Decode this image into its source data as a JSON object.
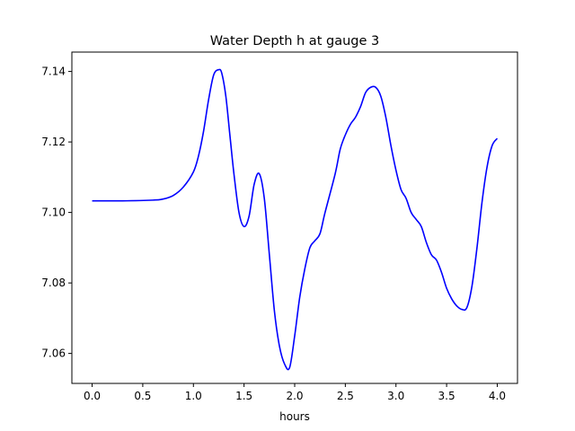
{
  "chart_data": {
    "type": "line",
    "title": "Water Depth h at gauge 3",
    "xlabel": "hours",
    "ylabel": "",
    "xlim": [
      -0.2,
      4.2
    ],
    "ylim": [
      7.0515,
      7.1455
    ],
    "xticks": [
      0.0,
      0.5,
      1.0,
      1.5,
      2.0,
      2.5,
      3.0,
      3.5,
      4.0
    ],
    "xtick_labels": [
      "0.0",
      "0.5",
      "1.0",
      "1.5",
      "2.0",
      "2.5",
      "3.0",
      "3.5",
      "4.0"
    ],
    "yticks": [
      7.06,
      7.08,
      7.1,
      7.12,
      7.14
    ],
    "ytick_labels": [
      "7.06",
      "7.08",
      "7.10",
      "7.12",
      "7.14"
    ],
    "grid": false,
    "series": [
      {
        "color": "#0000ff",
        "x": [
          0.0,
          0.3,
          0.6,
          0.7,
          0.8,
          0.9,
          1.0,
          1.05,
          1.1,
          1.15,
          1.2,
          1.25,
          1.28,
          1.32,
          1.36,
          1.4,
          1.45,
          1.5,
          1.55,
          1.6,
          1.65,
          1.7,
          1.75,
          1.8,
          1.85,
          1.9,
          1.95,
          2.0,
          2.05,
          2.1,
          2.15,
          2.2,
          2.25,
          2.3,
          2.4,
          2.45,
          2.5,
          2.55,
          2.6,
          2.65,
          2.7,
          2.75,
          2.8,
          2.85,
          2.9,
          2.95,
          3.0,
          3.05,
          3.1,
          3.15,
          3.2,
          3.25,
          3.3,
          3.35,
          3.4,
          3.45,
          3.5,
          3.55,
          3.6,
          3.65,
          3.7,
          3.75,
          3.8,
          3.85,
          3.9,
          3.95,
          4.0
        ],
        "y": [
          7.1033,
          7.1033,
          7.1035,
          7.1038,
          7.1048,
          7.1072,
          7.1115,
          7.116,
          7.123,
          7.132,
          7.139,
          7.1405,
          7.1395,
          7.133,
          7.122,
          7.111,
          7.1,
          7.096,
          7.099,
          7.108,
          7.111,
          7.104,
          7.088,
          7.072,
          7.062,
          7.057,
          7.056,
          7.065,
          7.076,
          7.084,
          7.09,
          7.092,
          7.094,
          7.1,
          7.111,
          7.118,
          7.122,
          7.125,
          7.127,
          7.13,
          7.134,
          7.1355,
          7.1355,
          7.133,
          7.127,
          7.119,
          7.112,
          7.1065,
          7.104,
          7.1,
          7.098,
          7.096,
          7.0915,
          7.088,
          7.0865,
          7.083,
          7.0785,
          7.0755,
          7.0735,
          7.0725,
          7.073,
          7.079,
          7.09,
          7.103,
          7.113,
          7.119,
          7.121
        ]
      }
    ]
  }
}
